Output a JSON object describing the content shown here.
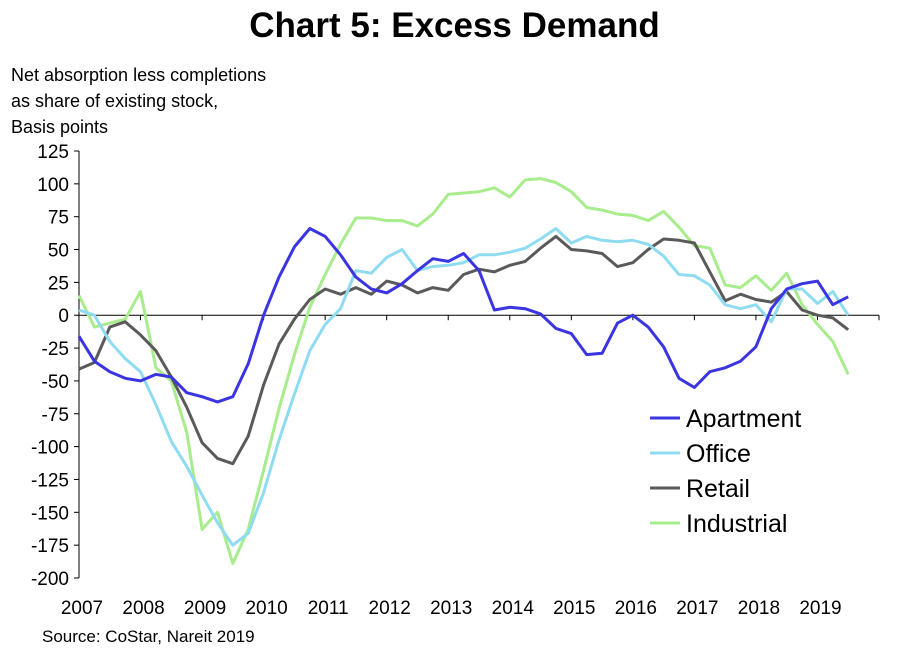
{
  "chart_data": {
    "type": "line",
    "title": "Chart 5: Excess Demand",
    "ylabel_lines": [
      "Net absorption less completions",
      "as share of existing stock,",
      "Basis points"
    ],
    "source": "Source: CoStar, Nareit 2019",
    "ylim": [
      -200,
      125
    ],
    "yticks": [
      125,
      100,
      75,
      50,
      25,
      0,
      -25,
      -50,
      -75,
      -100,
      -125,
      -150,
      -175,
      -200
    ],
    "xlim": [
      2007,
      2020
    ],
    "xticks": [
      "2007",
      "2008",
      "2009",
      "2010",
      "2011",
      "2012",
      "2013",
      "2014",
      "2015",
      "2016",
      "2017",
      "2018",
      "2019"
    ],
    "legend_position": "lower-right",
    "grid": false,
    "x": [
      2007.0,
      2007.25,
      2007.5,
      2007.75,
      2008.0,
      2008.25,
      2008.5,
      2008.75,
      2009.0,
      2009.25,
      2009.5,
      2009.75,
      2010.0,
      2010.25,
      2010.5,
      2010.75,
      2011.0,
      2011.25,
      2011.5,
      2011.75,
      2012.0,
      2012.25,
      2012.5,
      2012.75,
      2013.0,
      2013.25,
      2013.5,
      2013.75,
      2014.0,
      2014.25,
      2014.5,
      2014.75,
      2015.0,
      2015.25,
      2015.5,
      2015.75,
      2016.0,
      2016.25,
      2016.5,
      2016.75,
      2017.0,
      2017.25,
      2017.5,
      2017.75,
      2018.0,
      2018.25,
      2018.5,
      2018.75,
      2019.0,
      2019.25,
      2019.5
    ],
    "series": [
      {
        "name": "Apartment",
        "color": "#3a35e0",
        "values": [
          -16,
          -35,
          -43,
          -48,
          -50,
          -45,
          -47,
          -59,
          -62,
          -66,
          -62,
          -37,
          0,
          29,
          52,
          66,
          60,
          46,
          29,
          20,
          17,
          24,
          34,
          43,
          41,
          47,
          34,
          4,
          6,
          5,
          1,
          -10,
          -14,
          -30,
          -29,
          -6,
          0,
          -9,
          -24,
          -48,
          -55,
          -43,
          -40,
          -35,
          -24,
          5,
          20,
          24,
          26,
          8,
          14
        ]
      },
      {
        "name": "Office",
        "color": "#8fdcf2",
        "values": [
          4,
          0,
          -20,
          -33,
          -43,
          -68,
          -96,
          -115,
          -137,
          -158,
          -175,
          -166,
          -135,
          -95,
          -60,
          -27,
          -7,
          5,
          34,
          32,
          44,
          50,
          34,
          37,
          38,
          40,
          46,
          46,
          48,
          51,
          58,
          66,
          55,
          60,
          57,
          56,
          57,
          54,
          45,
          31,
          30,
          23,
          8,
          5,
          8,
          -5,
          20,
          20,
          9,
          18,
          0
        ]
      },
      {
        "name": "Retail",
        "color": "#5a5a5a",
        "values": [
          -41,
          -36,
          -9,
          -5,
          -15,
          -27,
          -47,
          -70,
          -97,
          -109,
          -113,
          -92,
          -53,
          -22,
          -3,
          12,
          20,
          16,
          21,
          16,
          26,
          23,
          17,
          21,
          19,
          31,
          35,
          33,
          38,
          41,
          51,
          60,
          50,
          49,
          47,
          37,
          40,
          50,
          58,
          57,
          55,
          33,
          11,
          16,
          12,
          10,
          18,
          4,
          0,
          -2,
          -11
        ]
      },
      {
        "name": "Industrial",
        "color": "#a8ec8c",
        "values": [
          15,
          -9,
          -6,
          -3,
          18,
          -40,
          -50,
          -89,
          -163,
          -150,
          -189,
          -163,
          -118,
          -71,
          -30,
          6,
          31,
          54,
          74,
          74,
          72,
          72,
          68,
          77,
          92,
          93,
          94,
          97,
          90,
          103,
          104,
          101,
          94,
          82,
          80,
          77,
          76,
          72,
          79,
          67,
          53,
          51,
          23,
          21,
          30,
          19,
          32,
          8,
          -7,
          -20,
          -45
        ]
      }
    ]
  }
}
